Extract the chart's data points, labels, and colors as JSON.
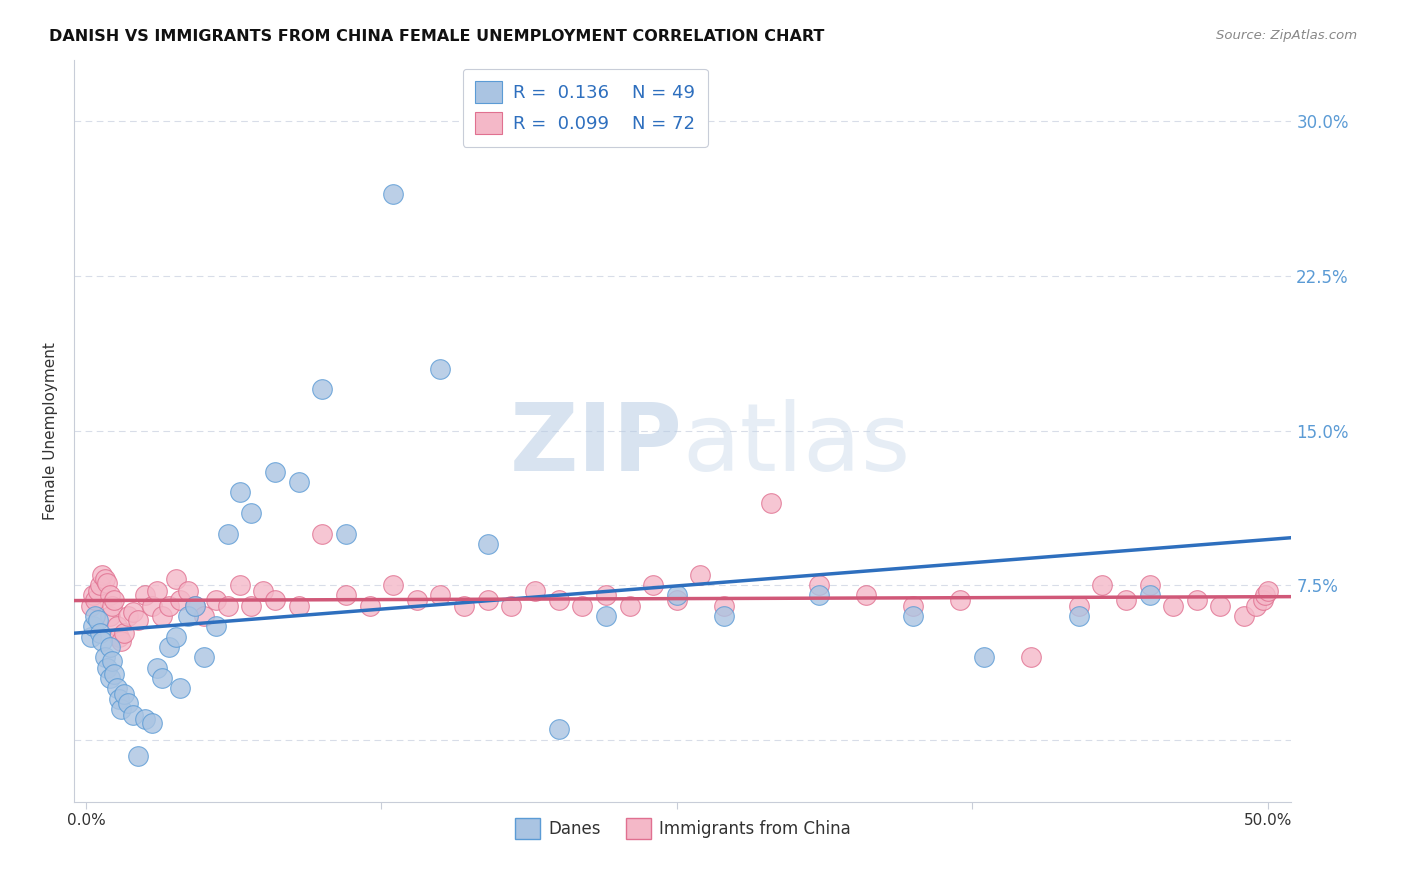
{
  "title": "DANISH VS IMMIGRANTS FROM CHINA FEMALE UNEMPLOYMENT CORRELATION CHART",
  "source": "Source: ZipAtlas.com",
  "ylabel": "Female Unemployment",
  "danes_color": "#aac4e2",
  "danes_edge_color": "#5b9bd5",
  "danes_line_color": "#2e6fbe",
  "immigrants_color": "#f4b8c8",
  "immigrants_edge_color": "#e07090",
  "immigrants_line_color": "#d05878",
  "legend_box_color_danes": "#aac4e2",
  "legend_box_color_immigrants": "#f4b8c8",
  "legend_text_color": "#2e6fbe",
  "axis_color": "#c8cdd8",
  "grid_color": "#d8dde8",
  "right_tick_color": "#5b9bd5",
  "watermark_color": "#c8d8ef",
  "danes_R": "0.136",
  "danes_N": "49",
  "immigrants_R": "0.099",
  "immigrants_N": "72",
  "danes_x": [
    0.002,
    0.003,
    0.004,
    0.005,
    0.006,
    0.007,
    0.008,
    0.009,
    0.01,
    0.01,
    0.011,
    0.012,
    0.013,
    0.014,
    0.015,
    0.016,
    0.018,
    0.02,
    0.022,
    0.025,
    0.028,
    0.03,
    0.032,
    0.035,
    0.038,
    0.04,
    0.043,
    0.046,
    0.05,
    0.055,
    0.06,
    0.065,
    0.07,
    0.08,
    0.09,
    0.1,
    0.11,
    0.13,
    0.15,
    0.17,
    0.2,
    0.22,
    0.25,
    0.27,
    0.31,
    0.35,
    0.38,
    0.42,
    0.45
  ],
  "danes_y": [
    0.05,
    0.055,
    0.06,
    0.058,
    0.052,
    0.048,
    0.04,
    0.035,
    0.03,
    0.045,
    0.038,
    0.032,
    0.025,
    0.02,
    0.015,
    0.022,
    0.018,
    0.012,
    -0.008,
    0.01,
    0.008,
    0.035,
    0.03,
    0.045,
    0.05,
    0.025,
    0.06,
    0.065,
    0.04,
    0.055,
    0.1,
    0.12,
    0.11,
    0.13,
    0.125,
    0.17,
    0.1,
    0.265,
    0.18,
    0.095,
    0.005,
    0.06,
    0.07,
    0.06,
    0.07,
    0.06,
    0.04,
    0.06,
    0.07
  ],
  "immigrants_x": [
    0.002,
    0.003,
    0.004,
    0.005,
    0.006,
    0.007,
    0.008,
    0.009,
    0.01,
    0.01,
    0.011,
    0.012,
    0.013,
    0.014,
    0.015,
    0.016,
    0.018,
    0.02,
    0.022,
    0.025,
    0.028,
    0.03,
    0.032,
    0.035,
    0.038,
    0.04,
    0.043,
    0.046,
    0.05,
    0.055,
    0.06,
    0.065,
    0.07,
    0.075,
    0.08,
    0.09,
    0.1,
    0.11,
    0.12,
    0.13,
    0.14,
    0.15,
    0.16,
    0.17,
    0.18,
    0.19,
    0.2,
    0.21,
    0.22,
    0.23,
    0.24,
    0.25,
    0.26,
    0.27,
    0.29,
    0.31,
    0.33,
    0.35,
    0.37,
    0.4,
    0.42,
    0.43,
    0.44,
    0.45,
    0.46,
    0.47,
    0.48,
    0.49,
    0.495,
    0.498,
    0.499,
    0.5
  ],
  "immigrants_y": [
    0.065,
    0.07,
    0.068,
    0.072,
    0.075,
    0.08,
    0.078,
    0.076,
    0.07,
    0.06,
    0.065,
    0.068,
    0.055,
    0.05,
    0.048,
    0.052,
    0.06,
    0.062,
    0.058,
    0.07,
    0.065,
    0.072,
    0.06,
    0.065,
    0.078,
    0.068,
    0.072,
    0.065,
    0.06,
    0.068,
    0.065,
    0.075,
    0.065,
    0.072,
    0.068,
    0.065,
    0.1,
    0.07,
    0.065,
    0.075,
    0.068,
    0.07,
    0.065,
    0.068,
    0.065,
    0.072,
    0.068,
    0.065,
    0.07,
    0.065,
    0.075,
    0.068,
    0.08,
    0.065,
    0.115,
    0.075,
    0.07,
    0.065,
    0.068,
    0.04,
    0.065,
    0.075,
    0.068,
    0.075,
    0.065,
    0.068,
    0.065,
    0.06,
    0.065,
    0.068,
    0.07,
    0.072
  ],
  "ytick_vals": [
    0.0,
    0.075,
    0.15,
    0.225,
    0.3
  ],
  "ytick_labels_right": [
    "",
    "7.5%",
    "15.0%",
    "22.5%",
    "30.0%"
  ],
  "xlim": [
    -0.005,
    0.51
  ],
  "ylim": [
    -0.03,
    0.33
  ]
}
